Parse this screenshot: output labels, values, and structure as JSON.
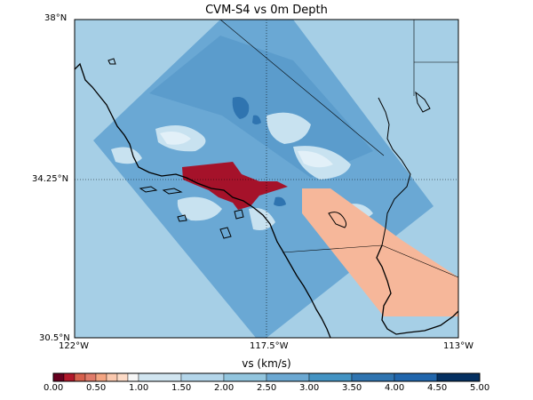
{
  "title": "CVM-S4 vs 0m Depth",
  "axes": {
    "lat_ticks": [
      "38°N",
      "34.25°N",
      "30.5°N"
    ],
    "lon_ticks": [
      "122°W",
      "117.5°W",
      "113°W"
    ]
  },
  "colorbar": {
    "label": "vs (km/s)",
    "tick_labels": [
      "0.00",
      "0.50",
      "1.00",
      "1.50",
      "2.00",
      "2.50",
      "3.00",
      "3.50",
      "4.00",
      "4.50",
      "5.00"
    ],
    "colors": [
      "#67001f",
      "#b2182b",
      "#d6604d",
      "#e07b6a",
      "#f4a582",
      "#fac8ae",
      "#fddbc7",
      "#f7f7f7",
      "#d1e5f0",
      "#b4d6ea",
      "#92c5de",
      "#6ba8d2",
      "#4393c3",
      "#2f74b0",
      "#2166ac",
      "#053061"
    ]
  },
  "colors": {
    "background_model": "#a6cfe6",
    "region_fill": "#6aa8d4",
    "region_patch_light": "#d6eaf4",
    "region_patch_dark": "#2f74b0",
    "low_velocity_basin": "#a5122a",
    "salton_zone": "#f6b79a",
    "coast_line": "#000000"
  }
}
